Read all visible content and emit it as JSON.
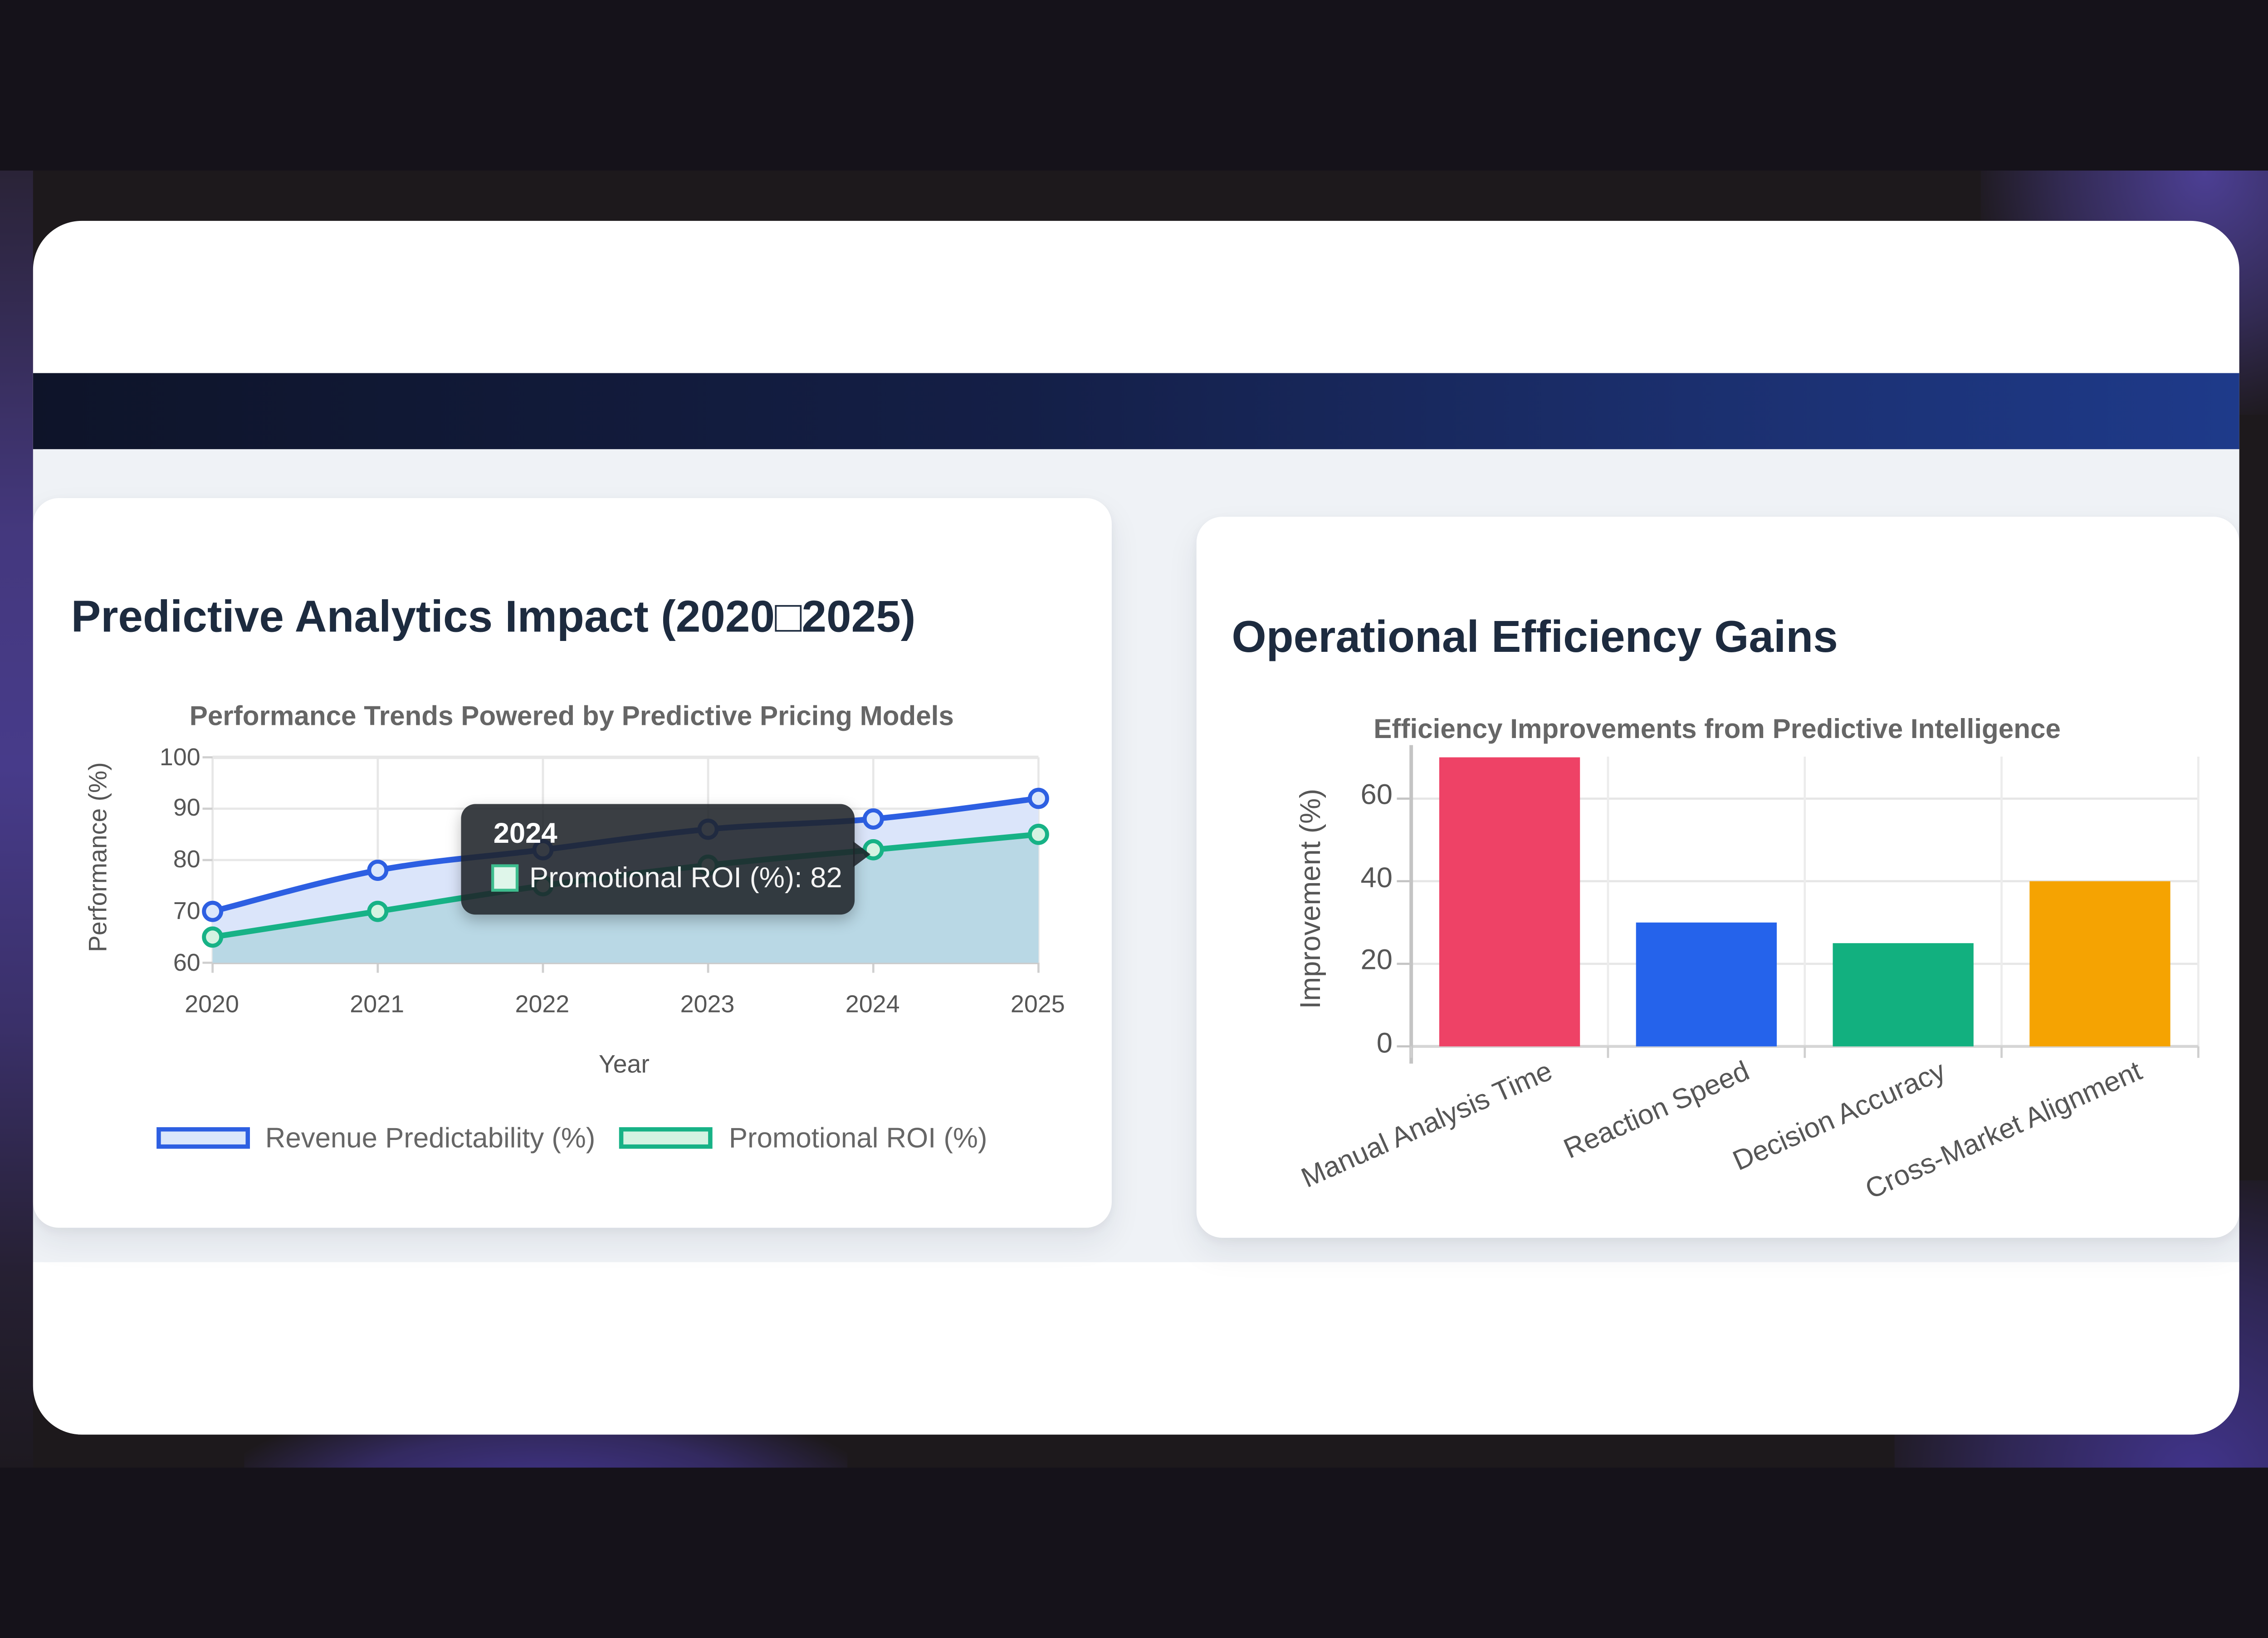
{
  "page": {
    "left_card": {
      "title": "Predictive Analytics Impact (2020□2025)"
    },
    "right_card": {
      "title": "Operational Efficiency Gains"
    }
  },
  "colors": {
    "header_bar_gradient_left": "#0e1429",
    "header_bar_gradient_right": "#1e3a8a",
    "section_background": "#eff2f6",
    "card_background": "#ffffff",
    "title_text": "#1d2b3f",
    "subtitle_text": "#666666",
    "axis_text": "#565656",
    "tooltip_background": "rgba(31,35,41,0.88)",
    "desktop_purple": "#45398a"
  },
  "chart_data": [
    {
      "type": "line",
      "title": "Performance Trends Powered by Predictive Pricing Models",
      "xlabel": "Year",
      "ylabel": "Performance (%)",
      "x": [
        2020,
        2021,
        2022,
        2023,
        2024,
        2025
      ],
      "ylim": [
        60,
        100
      ],
      "yticks": [
        60,
        70,
        80,
        90,
        100
      ],
      "grid": true,
      "legend_position": "bottom",
      "series": [
        {
          "name": "Revenue Predictability (%)",
          "values": [
            70,
            78,
            82,
            86,
            88,
            92
          ],
          "color": "#2d5fe2",
          "marker_fill": "#dbe7fb",
          "area_fill": "#dbe5fa"
        },
        {
          "name": "Promotional ROI (%)",
          "values": [
            65,
            70,
            75,
            79,
            82,
            85
          ],
          "color": "#17b286",
          "marker_fill": "#d5f3e2",
          "area_fill": "#b9d8e5"
        }
      ],
      "tooltip": {
        "title": "2024",
        "label": "Promotional ROI (%): 82",
        "series": "Promotional ROI (%)",
        "x": 2024,
        "value": 82,
        "swatch_fill": "#dff6ea",
        "swatch_border": "#3dbd8e"
      }
    },
    {
      "type": "bar",
      "title": "Efficiency Improvements from Predictive Intelligence",
      "xlabel": "",
      "ylabel": "Improvement (%)",
      "categories": [
        "Manual Analysis Time",
        "Reaction Speed",
        "Decision Accuracy",
        "Cross-Market Alignment"
      ],
      "values": [
        70,
        30,
        25,
        40
      ],
      "colors": [
        "#ee4266",
        "#2563eb",
        "#12b07f",
        "#f5a302"
      ],
      "ylim": [
        0,
        70
      ],
      "yticks": [
        0,
        20,
        40,
        60
      ],
      "grid": true
    }
  ]
}
